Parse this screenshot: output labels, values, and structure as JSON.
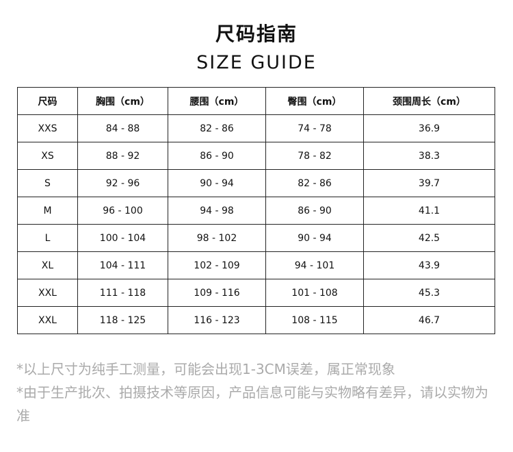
{
  "title_cn": "尺码指南",
  "title_en": "SIZE GUIDE",
  "table": {
    "headers": [
      "尺码",
      "胸围（cm）",
      "腰围（cm）",
      "臀围（cm）",
      "颈围周长（cm）"
    ],
    "rows": [
      [
        "XXS",
        "84 - 88",
        "82 - 86",
        "74 - 78",
        "36.9"
      ],
      [
        "XS",
        "88 - 92",
        "86 - 90",
        "78 - 82",
        "38.3"
      ],
      [
        "S",
        "92 - 96",
        "90 - 94",
        "82 - 86",
        "39.7"
      ],
      [
        "M",
        "96 - 100",
        "94 - 98",
        "86 - 90",
        "41.1"
      ],
      [
        "L",
        "100 - 104",
        "98 - 102",
        "90 - 94",
        "42.5"
      ],
      [
        "XL",
        "104 - 111",
        "102 - 109",
        "94 - 101",
        "43.9"
      ],
      [
        "XXL",
        "111 - 118",
        "109 - 116",
        "101 - 108",
        "45.3"
      ],
      [
        "XXL",
        "118 - 125",
        "116 - 123",
        "108 - 115",
        "46.7"
      ]
    ]
  },
  "notes": [
    "*以上尺寸为纯手工测量，可能会出现1-3CM误差，属正常现象",
    "*由于生产批次、拍摄技术等原因，产品信息可能与实物略有差异，请以实物为准"
  ]
}
